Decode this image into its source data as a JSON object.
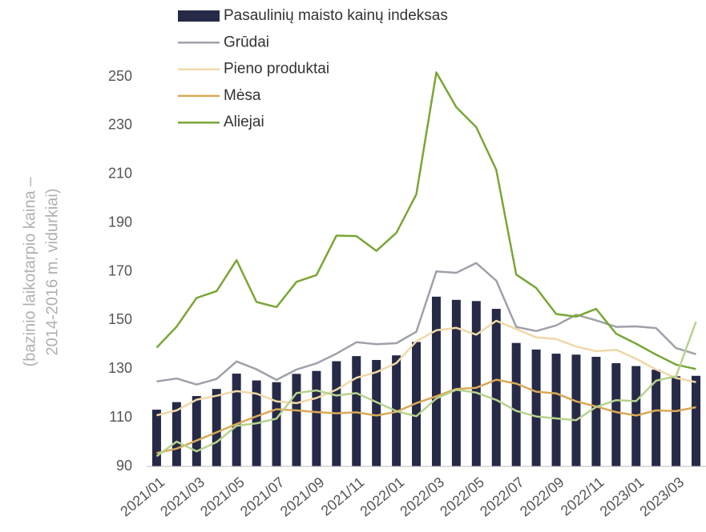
{
  "chart_data": {
    "type": "bar",
    "ylabel": [
      "(bazinio laikotarpio kaina –",
      "2014-2016 m. vidurkiai)"
    ],
    "categories": [
      "2021/01",
      null,
      "2021/03",
      null,
      "2021/05",
      null,
      "2021/07",
      null,
      "2021/09",
      null,
      "2021/11",
      null,
      "2022/01",
      null,
      "2022/03",
      null,
      "2022/05",
      null,
      "2022/07",
      null,
      "2022/09",
      null,
      "2022/11",
      null,
      "2023/01",
      null,
      "2023/03",
      null
    ],
    "series": [
      {
        "name": "Pasaulinių maisto kainų indeksas",
        "type": "bar",
        "color": "#262a47",
        "values": [
          113.3,
          116.4,
          118.9,
          121.8,
          128.1,
          125.3,
          124.6,
          128.0,
          129.2,
          133.2,
          135.3,
          133.7,
          135.6,
          141.1,
          159.7,
          158.4,
          157.9,
          154.7,
          140.7,
          138.0,
          136.3,
          135.9,
          135.0,
          132.4,
          131.2,
          129.7,
          127.0,
          127.2
        ]
      },
      {
        "name": "Grūdai",
        "type": "line",
        "color": "#a0a0ab",
        "values": [
          124.9,
          126.1,
          123.6,
          125.9,
          133.1,
          129.9,
          125.5,
          129.8,
          132.3,
          136.3,
          141.0,
          140.2,
          140.6,
          145.3,
          170.1,
          169.5,
          173.5,
          166.3,
          147.3,
          145.6,
          147.9,
          152.3,
          150.0,
          147.3,
          147.5,
          146.8,
          138.6,
          136.1
        ]
      },
      {
        "name": "Pieno produktai",
        "type": "line",
        "color": "#f0d9a8",
        "values": [
          111.0,
          113.0,
          117.4,
          119.0,
          120.9,
          119.9,
          116.7,
          116.0,
          118.1,
          121.5,
          126.4,
          128.7,
          132.4,
          141.4,
          145.9,
          146.9,
          144.1,
          149.8,
          146.4,
          143.0,
          142.3,
          139.2,
          137.3,
          137.9,
          134.2,
          129.8,
          126.3,
          124.6
        ]
      },
      {
        "name": "Mėsa",
        "type": "line",
        "color": "#d9a957",
        "values": [
          95.5,
          97.3,
          100.6,
          104.0,
          107.4,
          110.6,
          113.5,
          113.0,
          112.3,
          111.8,
          112.2,
          110.9,
          112.4,
          116.0,
          118.8,
          121.8,
          122.3,
          125.6,
          124.0,
          120.7,
          120.0,
          116.7,
          114.6,
          112.3,
          110.9,
          113.0,
          112.7,
          114.3
        ]
      },
      {
        "name": "Aliejai",
        "type": "line",
        "color": "#7aa636",
        "values": [
          138.8,
          147.4,
          159.2,
          162.0,
          174.7,
          157.5,
          155.4,
          165.8,
          168.6,
          184.8,
          184.6,
          178.5,
          185.9,
          201.7,
          251.8,
          237.5,
          229.3,
          211.8,
          168.8,
          163.3,
          152.6,
          151.5,
          154.7,
          144.5,
          140.4,
          135.9,
          131.8,
          130.0
        ]
      },
      {
        "type": "line",
        "color": "#b7d38e",
        "values": [
          94.2,
          100.2,
          96.2,
          100.0,
          106.7,
          107.7,
          109.6,
          120.1,
          121.2,
          119.1,
          120.1,
          116.4,
          112.7,
          110.6,
          117.9,
          121.5,
          120.3,
          117.3,
          112.8,
          110.5,
          109.7,
          109.0,
          114.4,
          117.2,
          116.8,
          125.2,
          127.0,
          149.4
        ]
      }
    ],
    "ylim": [
      90,
      250
    ],
    "yticks": [
      90,
      110,
      130,
      150,
      170,
      190,
      210,
      230,
      250
    ],
    "legend": "top"
  }
}
